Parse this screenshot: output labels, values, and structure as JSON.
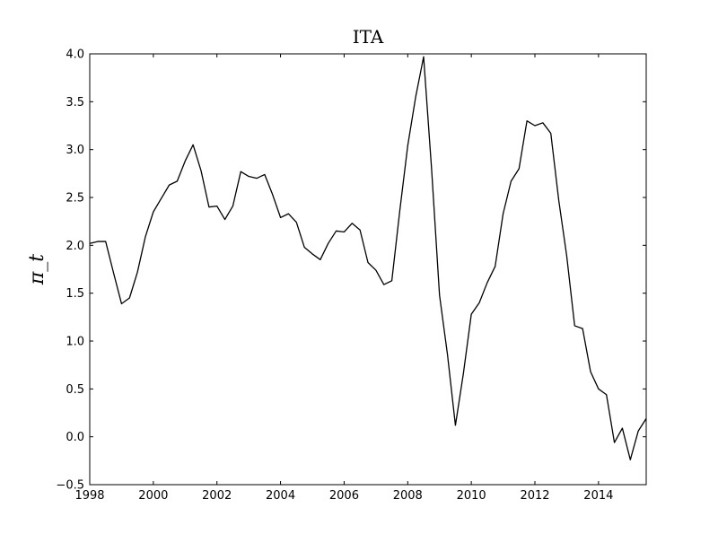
{
  "chart_data": {
    "type": "line",
    "title": "ITA",
    "xlabel": "",
    "ylabel": "π_t",
    "xlim": [
      1998,
      2015.5
    ],
    "ylim": [
      -0.5,
      4.0
    ],
    "grid": false,
    "x_ticks": [
      1998,
      2000,
      2002,
      2004,
      2006,
      2008,
      2010,
      2012,
      2014
    ],
    "y_ticks": [
      -0.5,
      0.0,
      0.5,
      1.0,
      1.5,
      2.0,
      2.5,
      3.0,
      3.5,
      4.0
    ],
    "x_tick_labels": [
      "1998",
      "2000",
      "2002",
      "2004",
      "2006",
      "2008",
      "2010",
      "2012",
      "2014"
    ],
    "y_tick_labels": [
      "−0.5",
      "0.0",
      "0.5",
      "1.0",
      "1.5",
      "2.0",
      "2.5",
      "3.0",
      "3.5",
      "4.0"
    ],
    "line_color": "#000000",
    "series": [
      {
        "x": [
          1998.0,
          1998.25,
          1998.5,
          1998.75,
          1999.0,
          1999.25,
          1999.5,
          1999.75,
          2000.0,
          2000.25,
          2000.5,
          2000.75,
          2001.0,
          2001.25,
          2001.5,
          2001.75,
          2002.0,
          2002.25,
          2002.5,
          2002.75,
          2003.0,
          2003.25,
          2003.5,
          2003.75,
          2004.0,
          2004.25,
          2004.5,
          2004.75,
          2005.0,
          2005.25,
          2005.5,
          2005.75,
          2006.0,
          2006.25,
          2006.5,
          2006.75,
          2007.0,
          2007.25,
          2007.5,
          2007.75,
          2008.0,
          2008.25,
          2008.5,
          2008.75,
          2009.0,
          2009.25,
          2009.5,
          2009.75,
          2010.0,
          2010.25,
          2010.5,
          2010.75,
          2011.0,
          2011.25,
          2011.5,
          2011.75,
          2012.0,
          2012.25,
          2012.5,
          2012.75,
          2013.0,
          2013.25,
          2013.5,
          2013.75,
          2014.0,
          2014.25,
          2014.5,
          2014.75,
          2015.0,
          2015.25,
          2015.5
        ],
        "y": [
          2.02,
          2.04,
          2.04,
          1.71,
          1.39,
          1.45,
          1.72,
          2.09,
          2.35,
          2.49,
          2.63,
          2.67,
          2.88,
          3.05,
          2.78,
          2.4,
          2.41,
          2.27,
          2.41,
          2.77,
          2.72,
          2.7,
          2.74,
          2.53,
          2.29,
          2.33,
          2.24,
          1.98,
          1.91,
          1.85,
          2.02,
          2.15,
          2.14,
          2.23,
          2.16,
          1.82,
          1.74,
          1.59,
          1.63,
          2.36,
          3.04,
          3.55,
          3.97,
          2.8,
          1.48,
          0.86,
          0.12,
          0.66,
          1.28,
          1.4,
          1.61,
          1.78,
          2.33,
          2.67,
          2.8,
          3.3,
          3.25,
          3.28,
          3.17,
          2.47,
          1.89,
          1.16,
          1.13,
          0.68,
          0.5,
          0.44,
          -0.06,
          0.09,
          -0.24,
          0.06,
          0.19
        ]
      }
    ]
  }
}
